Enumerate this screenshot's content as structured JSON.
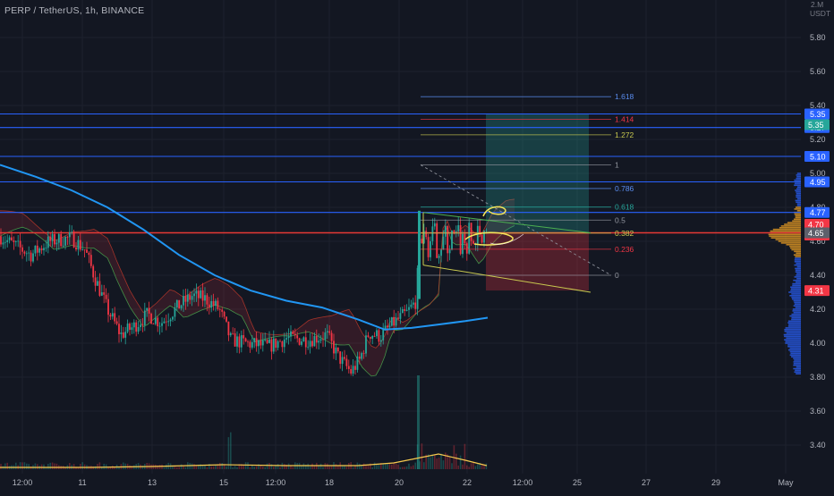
{
  "header": {
    "title": "PERP / TetherUS, 1h, BINANCE"
  },
  "chart_data": {
    "type": "candlestick",
    "title": "PERP / TetherUS, 1h, BINANCE",
    "currency": "USDT",
    "price_axis_top_label": "2.M",
    "y_range": [
      3.25,
      5.95
    ],
    "y_ticks": [
      "5.80",
      "5.60",
      "5.40",
      "5.20",
      "5.00",
      "4.80",
      "4.60",
      "4.40",
      "4.20",
      "4.00",
      "3.80",
      "3.60",
      "3.40"
    ],
    "x_ticks": [
      "12:00",
      "11",
      "13",
      "15",
      "12:00",
      "18",
      "20",
      "22",
      "12:00",
      "25",
      "27",
      "29",
      "May"
    ],
    "horizontal_levels": [
      {
        "price": 5.35,
        "label": "5.35",
        "color": "#2962ff"
      },
      {
        "price": 5.27,
        "label": "5.27",
        "color": "#2962ff"
      },
      {
        "price": 5.1,
        "label": "5.10",
        "color": "#2962ff"
      },
      {
        "price": 4.95,
        "label": "4.95",
        "color": "#2962ff"
      },
      {
        "price": 4.77,
        "label": "4.77",
        "color": "#2962ff"
      },
      {
        "price": 4.65,
        "label": "4.65",
        "color": "#e53935"
      }
    ],
    "price_badges": [
      {
        "price": 5.35,
        "label": "5.35",
        "bg": "#26a69a"
      },
      {
        "price": 4.7,
        "label": "4.70",
        "bg": "#f23645"
      },
      {
        "price": 4.7,
        "label": "56:42",
        "bg": "#f23645"
      },
      {
        "price": 4.65,
        "label": "4.65",
        "bg": "#5d606b"
      },
      {
        "price": 4.31,
        "label": "4.31",
        "bg": "#f23645"
      }
    ],
    "fibonacci": {
      "from_price": 4.4,
      "to_price": 5.05,
      "levels": [
        {
          "ratio": 0,
          "label": "0",
          "color": "#9598a1"
        },
        {
          "ratio": 0.236,
          "label": "0.236",
          "color": "#f23645"
        },
        {
          "ratio": 0.382,
          "label": "0.382",
          "color": "#c9c94f"
        },
        {
          "ratio": 0.5,
          "label": "0.5",
          "color": "#9598a1"
        },
        {
          "ratio": 0.618,
          "label": "0.618",
          "color": "#26a69a"
        },
        {
          "ratio": 0.786,
          "label": "0.786",
          "color": "#5b8def"
        },
        {
          "ratio": 1,
          "label": "1",
          "color": "#9598a1"
        },
        {
          "ratio": 1.272,
          "label": "1.272",
          "color": "#c9c94f"
        },
        {
          "ratio": 1.414,
          "label": "1.414",
          "color": "#f23645"
        },
        {
          "ratio": 1.618,
          "label": "1.618",
          "color": "#5b8def"
        }
      ]
    },
    "position": {
      "entry": 4.65,
      "target": 5.35,
      "stop": 4.31,
      "profit_color": "#26a69a",
      "loss_color": "#f23645"
    },
    "moving_average": {
      "color": "#2196f3"
    },
    "volume_line_color": "#f5c94e",
    "annotation_color": "#f5e65a"
  }
}
